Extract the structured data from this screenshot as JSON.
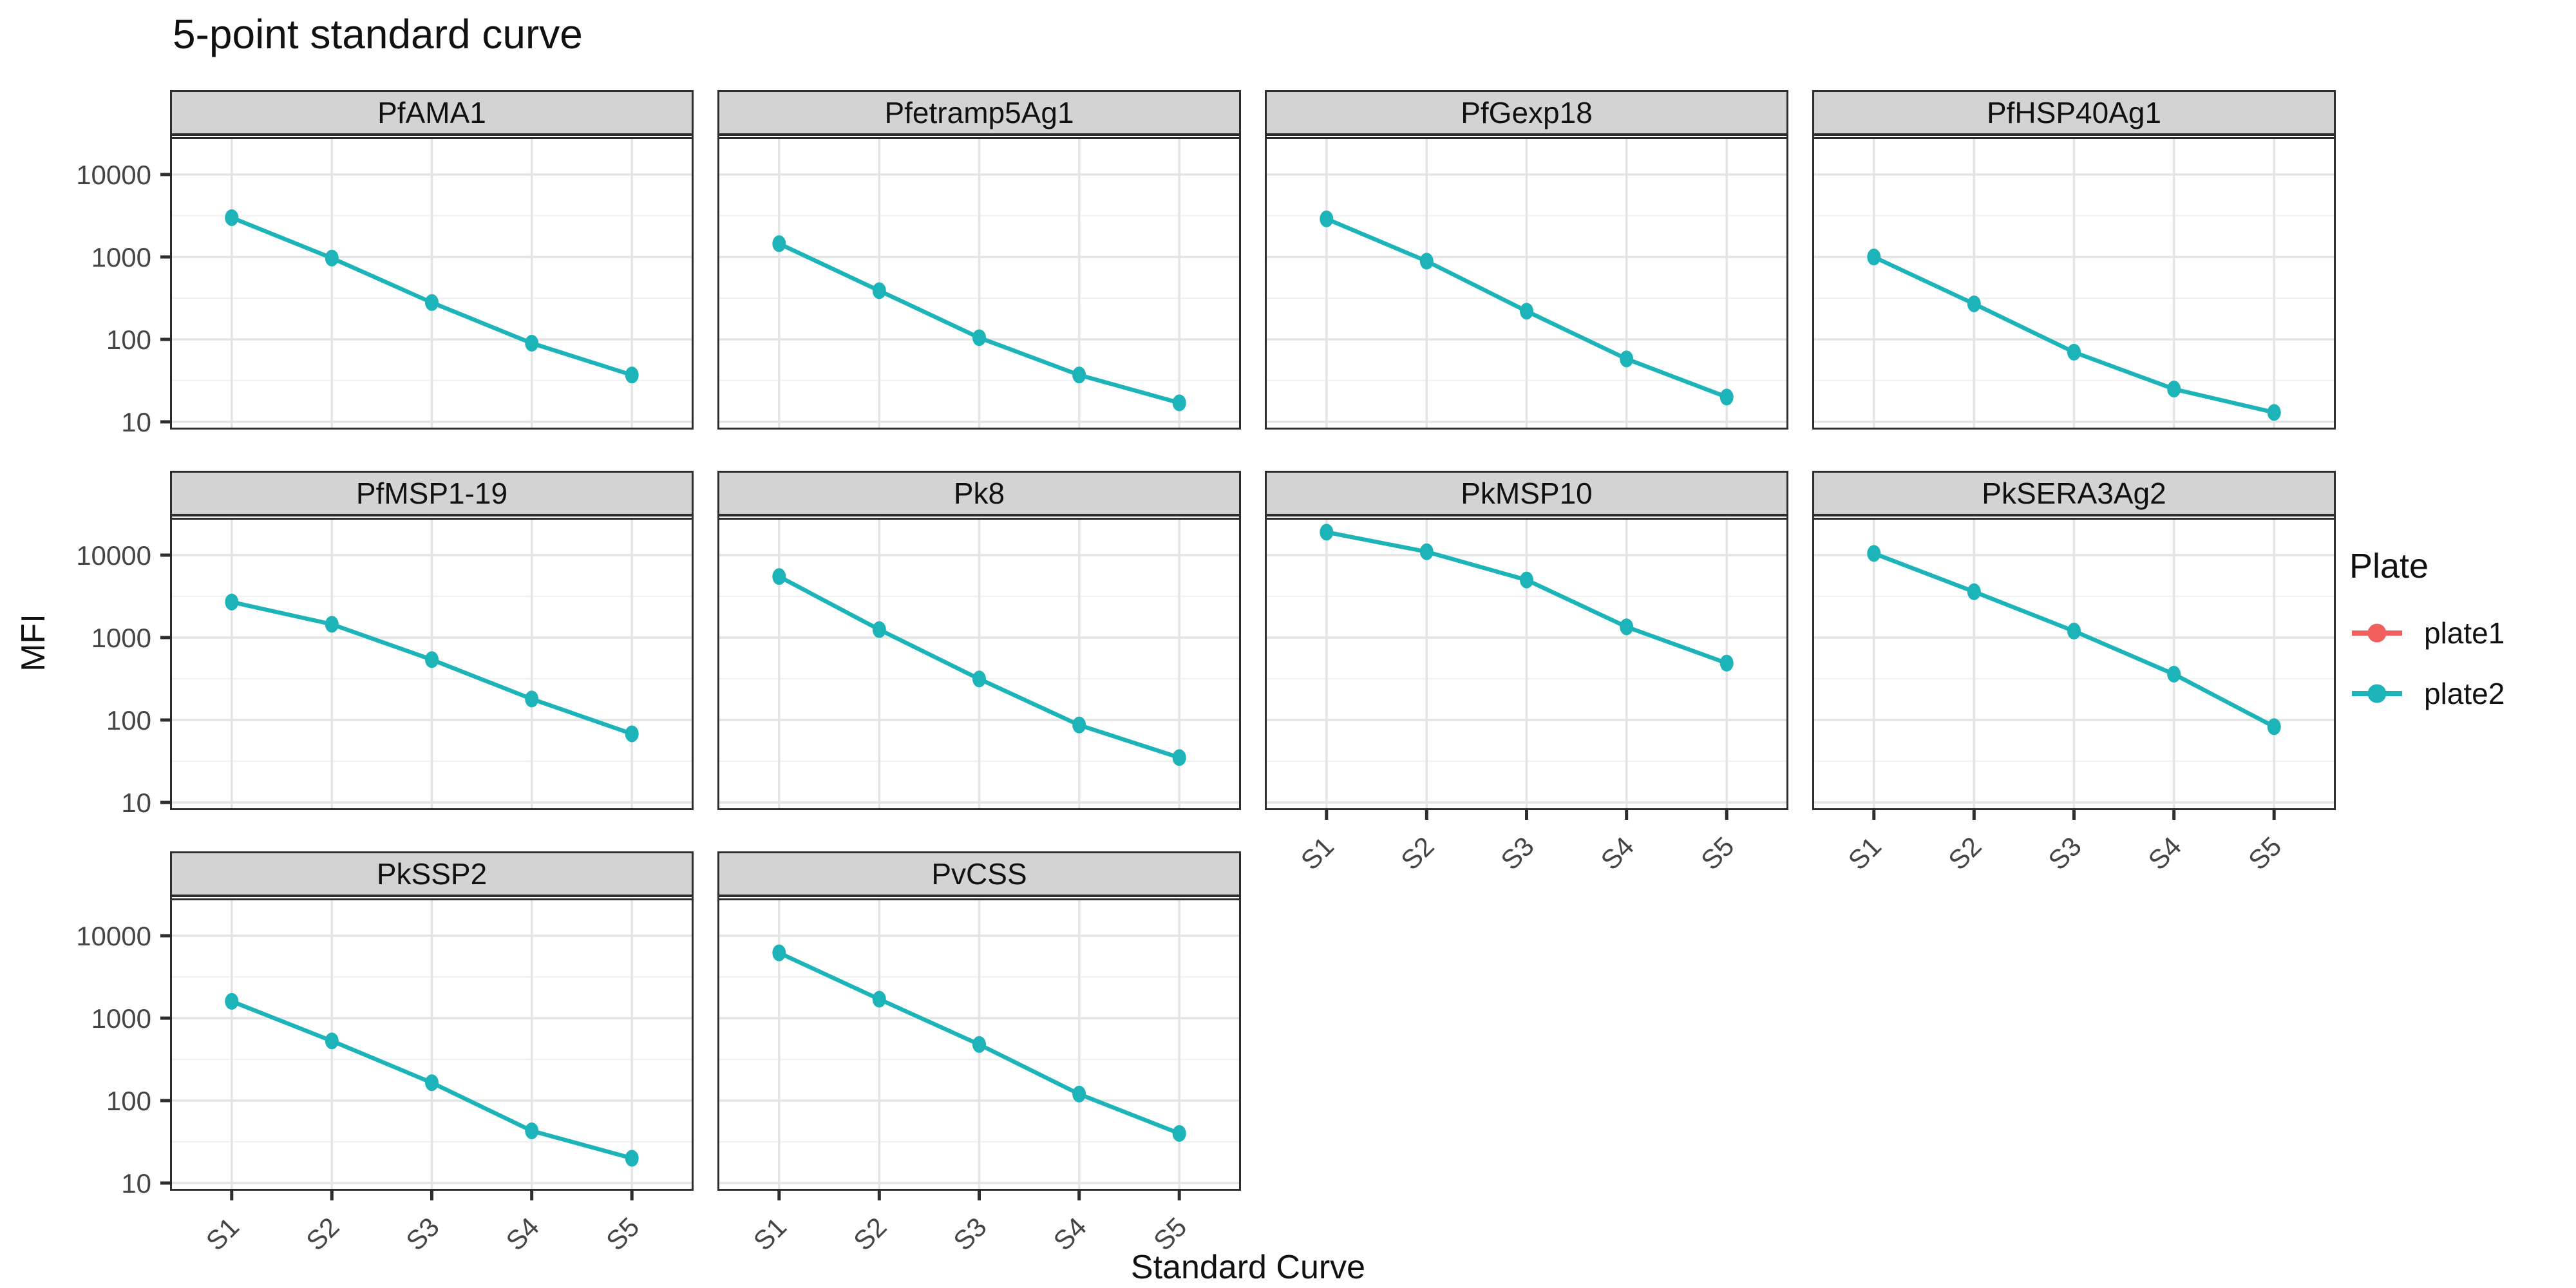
{
  "title": "5-point standard curve",
  "axes": {
    "x_title": "Standard Curve",
    "y_title": "MFI",
    "x_tick_labels": [
      "S1",
      "S2",
      "S3",
      "S4",
      "S5"
    ],
    "y_tick_labels": [
      "10",
      "100",
      "1000",
      "10000"
    ]
  },
  "legend": {
    "title": "Plate",
    "items": [
      {
        "label": "plate1",
        "color": "#F1605D"
      },
      {
        "label": "plate2",
        "color": "#1CB4B8"
      }
    ]
  },
  "colors": {
    "strip_background": "#D3D3D3",
    "panel_border": "#2D2D2D",
    "grid_major": "#E4E4E4",
    "grid_minor": "#F1F1F1",
    "tick_text": "#454545",
    "text": "#111111"
  },
  "chart_data": {
    "type": "line",
    "title": "5-point standard curve",
    "xlabel": "Standard Curve",
    "ylabel": "MFI",
    "x_categories": [
      "S1",
      "S2",
      "S3",
      "S4",
      "S5"
    ],
    "y_scale": "log10",
    "y_ticks": [
      10,
      100,
      1000,
      10000
    ],
    "ylim": [
      8.5,
      27000
    ],
    "grid": "major gridlines at decades and category positions, minor at half-decades, light gray on white",
    "legend_position": "right",
    "facet_layout": {
      "columns": 4,
      "rows": 3
    },
    "series_names": [
      "plate1",
      "plate2"
    ],
    "facets": [
      {
        "name": "PfAMA1",
        "series": [
          {
            "name": "plate2",
            "values": [
              3000,
              970,
              280,
              90,
              37
            ]
          }
        ]
      },
      {
        "name": "Pfetramp5Ag1",
        "series": [
          {
            "name": "plate2",
            "values": [
              1450,
              390,
              105,
              37,
              17
            ]
          }
        ]
      },
      {
        "name": "PfGexp18",
        "series": [
          {
            "name": "plate2",
            "values": [
              2900,
              890,
              220,
              58,
              20
            ]
          }
        ]
      },
      {
        "name": "PfHSP40Ag1",
        "series": [
          {
            "name": "plate2",
            "values": [
              1000,
              270,
              70,
              25,
              13
            ]
          }
        ]
      },
      {
        "name": "PfMSP1-19",
        "series": [
          {
            "name": "plate2",
            "values": [
              2700,
              1450,
              540,
              180,
              68
            ]
          }
        ]
      },
      {
        "name": "Pk8",
        "series": [
          {
            "name": "plate2",
            "values": [
              5500,
              1250,
              315,
              87,
              35
            ]
          }
        ]
      },
      {
        "name": "PkMSP10",
        "series": [
          {
            "name": "plate2",
            "values": [
              19000,
              11000,
              5000,
              1350,
              490
            ]
          }
        ]
      },
      {
        "name": "PkSERA3Ag2",
        "series": [
          {
            "name": "plate2",
            "values": [
              10500,
              3600,
              1200,
              360,
              83
            ]
          }
        ]
      },
      {
        "name": "PkSSP2",
        "series": [
          {
            "name": "plate2",
            "values": [
              1600,
              530,
              165,
              43,
              20
            ]
          }
        ]
      },
      {
        "name": "PvCSS",
        "series": [
          {
            "name": "plate2",
            "values": [
              6200,
              1700,
              480,
              120,
              40
            ]
          }
        ]
      }
    ]
  }
}
